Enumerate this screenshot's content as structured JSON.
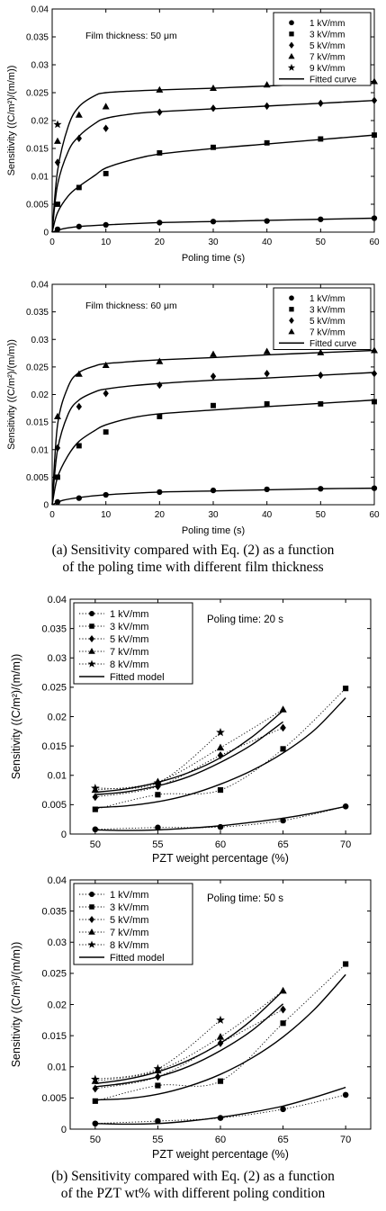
{
  "captions": {
    "a_line1": "(a) Sensitivity compared with Eq. (2) as a function",
    "a_line2": "of the poling time with different film thickness",
    "b_line1": "(b) Sensitivity compared with Eq. (2) as a function",
    "b_line2": "of the PZT wt% with different poling condition"
  },
  "chart_data": [
    {
      "type": "scatter",
      "annotation": "Film thickness: 50 μm",
      "xlabel": "Poling time (s)",
      "ylabel": "Sensitivity ((C/m²)/(m/m))",
      "xlim": [
        0,
        60
      ],
      "ylim": [
        0,
        0.04
      ],
      "xticks": [
        0,
        10,
        20,
        30,
        40,
        50,
        60
      ],
      "yticks": [
        0,
        0.005,
        0.01,
        0.015,
        0.02,
        0.025,
        0.03,
        0.035,
        0.04
      ],
      "ytick_labels": [
        "0",
        "0.005",
        "0.01",
        "0.015",
        "0.02",
        "0.025",
        "0.03",
        "0.035",
        "0.04"
      ],
      "legend_position": "top-right",
      "fit_label": "Fitted curve",
      "series": [
        {
          "name": "1 kV/mm",
          "marker": "circle",
          "x": [
            1,
            5,
            10,
            20,
            30,
            40,
            50,
            60
          ],
          "y": [
            0.0005,
            0.001,
            0.0013,
            0.0017,
            0.0019,
            0.002,
            0.0023,
            0.0025
          ],
          "fit": {
            "x": [
              0,
              2,
              5,
              10,
              20,
              30,
              40,
              50,
              60
            ],
            "y": [
              0,
              0.0006,
              0.001,
              0.0013,
              0.0017,
              0.0019,
              0.0021,
              0.0023,
              0.0025
            ]
          }
        },
        {
          "name": "3 kV/mm",
          "marker": "square",
          "x": [
            1,
            5,
            10,
            20,
            30,
            40,
            50,
            60
          ],
          "y": [
            0.005,
            0.008,
            0.0105,
            0.0142,
            0.0152,
            0.016,
            0.0167,
            0.0174
          ],
          "fit": {
            "x": [
              0,
              1,
              3,
              5,
              8,
              10,
              15,
              20,
              30,
              40,
              50,
              60
            ],
            "y": [
              0,
              0.0035,
              0.0065,
              0.0082,
              0.0102,
              0.0115,
              0.013,
              0.014,
              0.015,
              0.0158,
              0.0166,
              0.0174
            ]
          }
        },
        {
          "name": "5 kV/mm",
          "marker": "diamond",
          "x": [
            1,
            5,
            10,
            20,
            30,
            40,
            50,
            60
          ],
          "y": [
            0.0125,
            0.0168,
            0.0186,
            0.0215,
            0.0222,
            0.0226,
            0.0231,
            0.0236
          ],
          "fit": {
            "x": [
              0,
              1,
              3,
              5,
              8,
              10,
              15,
              20,
              30,
              40,
              50,
              60
            ],
            "y": [
              0,
              0.0085,
              0.0145,
              0.0172,
              0.0195,
              0.0204,
              0.0212,
              0.0216,
              0.0221,
              0.0226,
              0.0231,
              0.0236
            ]
          }
        },
        {
          "name": "7 kV/mm",
          "marker": "triangle",
          "x": [
            1,
            5,
            10,
            20,
            30,
            40,
            50,
            60
          ],
          "y": [
            0.0163,
            0.021,
            0.0225,
            0.0255,
            0.0258,
            0.0264,
            0.0267,
            0.027
          ],
          "fit": {
            "x": [
              0,
              1,
              3,
              5,
              8,
              10,
              15,
              20,
              30,
              40,
              50,
              60
            ],
            "y": [
              0,
              0.011,
              0.019,
              0.0225,
              0.0245,
              0.025,
              0.0253,
              0.0255,
              0.0258,
              0.0262,
              0.0266,
              0.027
            ]
          }
        },
        {
          "name": "9 kV/mm",
          "marker": "star",
          "x": [
            1
          ],
          "y": [
            0.0193
          ]
        }
      ]
    },
    {
      "type": "scatter",
      "annotation": "Film thickness: 60 μm",
      "xlabel": "Poling time (s)",
      "ylabel": "Sensitivity ((C/m²)/(m/m))",
      "xlim": [
        0,
        60
      ],
      "ylim": [
        0,
        0.04
      ],
      "xticks": [
        0,
        10,
        20,
        30,
        40,
        50,
        60
      ],
      "yticks": [
        0,
        0.005,
        0.01,
        0.015,
        0.02,
        0.025,
        0.03,
        0.035,
        0.04
      ],
      "ytick_labels": [
        "0",
        "0.005",
        "0.01",
        "0.015",
        "0.02",
        "0.025",
        "0.03",
        "0.035",
        "0.04"
      ],
      "legend_position": "top-right",
      "fit_label": "Fitted curve",
      "series": [
        {
          "name": "1 kV/mm",
          "marker": "circle",
          "x": [
            1,
            5,
            10,
            20,
            30,
            40,
            50,
            60
          ],
          "y": [
            0.0005,
            0.0012,
            0.0018,
            0.0023,
            0.0026,
            0.0028,
            0.0029,
            0.003
          ],
          "fit": {
            "x": [
              0,
              2,
              5,
              10,
              20,
              30,
              40,
              50,
              60
            ],
            "y": [
              0,
              0.0008,
              0.0013,
              0.0018,
              0.0023,
              0.0025,
              0.0027,
              0.0029,
              0.003
            ]
          }
        },
        {
          "name": "3 kV/mm",
          "marker": "square",
          "x": [
            1,
            5,
            10,
            20,
            30,
            40,
            50,
            60
          ],
          "y": [
            0.005,
            0.0107,
            0.0132,
            0.016,
            0.018,
            0.0183,
            0.0183,
            0.0187
          ],
          "fit": {
            "x": [
              0,
              1,
              3,
              5,
              8,
              10,
              15,
              20,
              30,
              40,
              50,
              60
            ],
            "y": [
              0,
              0.005,
              0.009,
              0.0115,
              0.0135,
              0.0145,
              0.0158,
              0.0165,
              0.0172,
              0.0178,
              0.0184,
              0.019
            ]
          }
        },
        {
          "name": "5 kV/mm",
          "marker": "diamond",
          "x": [
            1,
            5,
            10,
            20,
            30,
            40,
            50,
            60
          ],
          "y": [
            0.0103,
            0.0178,
            0.0202,
            0.0217,
            0.0233,
            0.0238,
            0.0235,
            0.0238
          ],
          "fit": {
            "x": [
              0,
              1,
              3,
              5,
              8,
              10,
              15,
              20,
              30,
              40,
              50,
              60
            ],
            "y": [
              0,
              0.01,
              0.0165,
              0.019,
              0.0205,
              0.021,
              0.0216,
              0.022,
              0.0226,
              0.023,
              0.0235,
              0.024
            ]
          }
        },
        {
          "name": "7 kV/mm",
          "marker": "triangle",
          "x": [
            1,
            5,
            10,
            20,
            30,
            40,
            50,
            60
          ],
          "y": [
            0.016,
            0.0237,
            0.0253,
            0.026,
            0.0273,
            0.0278,
            0.0276,
            0.028
          ],
          "fit": {
            "x": [
              0,
              1,
              3,
              5,
              8,
              10,
              15,
              20,
              30,
              40,
              50,
              60
            ],
            "y": [
              0,
              0.0145,
              0.0215,
              0.024,
              0.0252,
              0.0256,
              0.026,
              0.0263,
              0.0267,
              0.0272,
              0.0276,
              0.028
            ]
          }
        }
      ]
    },
    {
      "type": "scatter",
      "annotation": "Poling time: 20 s",
      "xlabel": "PZT weight percentage (%)",
      "ylabel": "Sensitivity ((C/m²)/(m/m))",
      "xlim": [
        48,
        72
      ],
      "ylim": [
        0,
        0.04
      ],
      "xticks": [
        50,
        55,
        60,
        65,
        70
      ],
      "yticks": [
        0,
        0.005,
        0.01,
        0.015,
        0.02,
        0.025,
        0.03,
        0.035,
        0.04
      ],
      "ytick_labels": [
        "0",
        "0.005",
        "0.01",
        "0.015",
        "0.02",
        "0.025",
        "0.03",
        "0.035",
        "0.04"
      ],
      "legend_position": "top-left",
      "fit_label": "Fitted model",
      "series": [
        {
          "name": "1 kV/mm",
          "marker": "circle",
          "x": [
            50,
            55,
            60,
            65,
            70
          ],
          "y": [
            0.0008,
            0.0011,
            0.0012,
            0.0023,
            0.0047
          ],
          "fit": {
            "x": [
              50,
              52.5,
              55,
              57.5,
              60,
              62.5,
              65,
              67.5,
              70
            ],
            "y": [
              0.0007,
              0.0006,
              0.0007,
              0.001,
              0.0014,
              0.002,
              0.0027,
              0.0036,
              0.0047
            ]
          }
        },
        {
          "name": "3 kV/mm",
          "marker": "square",
          "x": [
            50,
            55,
            60,
            65,
            70
          ],
          "y": [
            0.0042,
            0.0067,
            0.0075,
            0.0145,
            0.0248
          ],
          "fit": {
            "x": [
              50,
              52.5,
              55,
              57.5,
              60,
              62.5,
              65,
              67.5,
              70
            ],
            "y": [
              0.0045,
              0.0048,
              0.0055,
              0.0067,
              0.0085,
              0.0108,
              0.0138,
              0.0177,
              0.0232
            ]
          }
        },
        {
          "name": "5 kV/mm",
          "marker": "diamond",
          "x": [
            50,
            55,
            60,
            65
          ],
          "y": [
            0.0063,
            0.0081,
            0.0134,
            0.0181
          ],
          "fit": {
            "x": [
              50,
              52.5,
              55,
              57.5,
              60,
              62.5,
              65
            ],
            "y": [
              0.0067,
              0.0072,
              0.0082,
              0.0098,
              0.0122,
              0.0152,
              0.0191
            ]
          }
        },
        {
          "name": "7 kV/mm",
          "marker": "triangle",
          "x": [
            50,
            55,
            60,
            65
          ],
          "y": [
            0.0075,
            0.0089,
            0.0147,
            0.0212
          ],
          "fit": {
            "x": [
              50,
              52.5,
              55,
              57.5,
              60,
              62.5,
              65
            ],
            "y": [
              0.0071,
              0.0077,
              0.0088,
              0.0105,
              0.013,
              0.0165,
              0.021
            ]
          }
        },
        {
          "name": "8 kV/mm",
          "marker": "star",
          "x": [
            50,
            55,
            60
          ],
          "y": [
            0.0078,
            0.0087,
            0.0173
          ]
        }
      ]
    },
    {
      "type": "scatter",
      "annotation": "Poling time: 50 s",
      "xlabel": "PZT weight percentage (%)",
      "ylabel": "Sensitivity ((C/m²)/(m/m))",
      "xlim": [
        48,
        72
      ],
      "ylim": [
        0,
        0.04
      ],
      "xticks": [
        50,
        55,
        60,
        65,
        70
      ],
      "yticks": [
        0,
        0.005,
        0.01,
        0.015,
        0.02,
        0.025,
        0.03,
        0.035,
        0.04
      ],
      "ytick_labels": [
        "0",
        "0.005",
        "0.01",
        "0.015",
        "0.02",
        "0.025",
        "0.03",
        "0.035",
        "0.04"
      ],
      "legend_position": "top-left",
      "fit_label": "Fitted model",
      "series": [
        {
          "name": "1 kV/mm",
          "marker": "circle",
          "x": [
            50,
            55,
            60,
            65,
            70
          ],
          "y": [
            0.0009,
            0.0013,
            0.0018,
            0.0032,
            0.0055
          ],
          "fit": {
            "x": [
              50,
              52.5,
              55,
              57.5,
              60,
              62.5,
              65,
              67.5,
              70
            ],
            "y": [
              0.0009,
              0.0008,
              0.0009,
              0.0013,
              0.0019,
              0.0027,
              0.0037,
              0.0051,
              0.0067
            ]
          }
        },
        {
          "name": "3 kV/mm",
          "marker": "square",
          "x": [
            50,
            55,
            60,
            65,
            70
          ],
          "y": [
            0.0045,
            0.007,
            0.0077,
            0.017,
            0.0265
          ],
          "fit": {
            "x": [
              50,
              52.5,
              55,
              57.5,
              60,
              62.5,
              65,
              67.5,
              70
            ],
            "y": [
              0.0047,
              0.0049,
              0.0056,
              0.0069,
              0.0088,
              0.0114,
              0.0148,
              0.0192,
              0.0248
            ]
          }
        },
        {
          "name": "5 kV/mm",
          "marker": "diamond",
          "x": [
            50,
            55,
            60,
            65
          ],
          "y": [
            0.0065,
            0.0084,
            0.0138,
            0.0192
          ],
          "fit": {
            "x": [
              50,
              52.5,
              55,
              57.5,
              60,
              62.5,
              65
            ],
            "y": [
              0.0068,
              0.0074,
              0.0084,
              0.0101,
              0.0126,
              0.0158,
              0.0201
            ]
          }
        },
        {
          "name": "7 kV/mm",
          "marker": "triangle",
          "x": [
            50,
            55,
            60,
            65
          ],
          "y": [
            0.0077,
            0.0094,
            0.0148,
            0.0222
          ],
          "fit": {
            "x": [
              50,
              52.5,
              55,
              57.5,
              60,
              62.5,
              65
            ],
            "y": [
              0.0073,
              0.008,
              0.0092,
              0.0111,
              0.0138,
              0.0175,
              0.0222
            ]
          }
        },
        {
          "name": "8 kV/mm",
          "marker": "star",
          "x": [
            50,
            55,
            60
          ],
          "y": [
            0.008,
            0.0097,
            0.0175
          ]
        }
      ]
    }
  ]
}
